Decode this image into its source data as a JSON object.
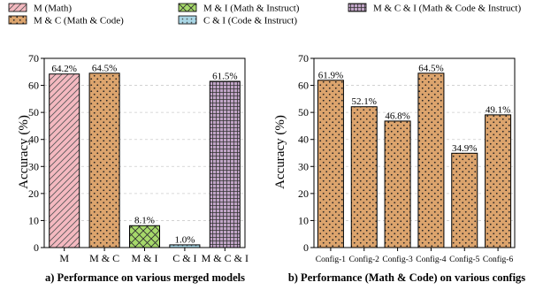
{
  "legend": [
    {
      "label": "M (Math)",
      "pattern": "diag"
    },
    {
      "label": "M & C (Math & Code)",
      "pattern": "dots"
    },
    {
      "label": "M & I (Math & Instruct)",
      "pattern": "cross"
    },
    {
      "label": "C & I (Code & Instruct)",
      "pattern": "stars"
    },
    {
      "label": "M & C & I (Math & Code & Instruct)",
      "pattern": "grid"
    }
  ],
  "colors": {
    "pink": "#f4b9c0",
    "orange": "#dca46d",
    "green": "#a6d96a",
    "blue": "#a9d6e5",
    "purple": "#c0a4c6",
    "grid": "#cccccc"
  },
  "chart_data": [
    {
      "type": "bar",
      "title": "a) Performance on various merged models",
      "ylabel": "Accuracy (%)",
      "xlabel": "",
      "ylim": [
        0,
        70
      ],
      "yticks": [
        0,
        10,
        20,
        30,
        40,
        50,
        60,
        70
      ],
      "grid": true,
      "categories": [
        "M",
        "M & C",
        "M & I",
        "C & I",
        "M & C & I"
      ],
      "values": [
        64.2,
        64.5,
        8.1,
        1.0,
        61.5
      ],
      "value_labels": [
        "64.2%",
        "64.5%",
        "8.1%",
        "1.0%",
        "61.5%"
      ]
    },
    {
      "type": "bar",
      "title": "b) Performance (Math & Code) on various configs",
      "ylabel": "Accuracy (%)",
      "xlabel": "",
      "ylim": [
        0,
        70
      ],
      "yticks": [
        0,
        10,
        20,
        30,
        40,
        50,
        60,
        70
      ],
      "grid": true,
      "categories": [
        "Config-1",
        "Config-2",
        "Config-3",
        "Config-4",
        "Config-5",
        "Config-6"
      ],
      "values": [
        61.9,
        52.1,
        46.8,
        64.5,
        34.9,
        49.1
      ],
      "value_labels": [
        "61.9%",
        "52.1%",
        "46.8%",
        "64.5%",
        "34.9%",
        "49.1%"
      ]
    }
  ]
}
